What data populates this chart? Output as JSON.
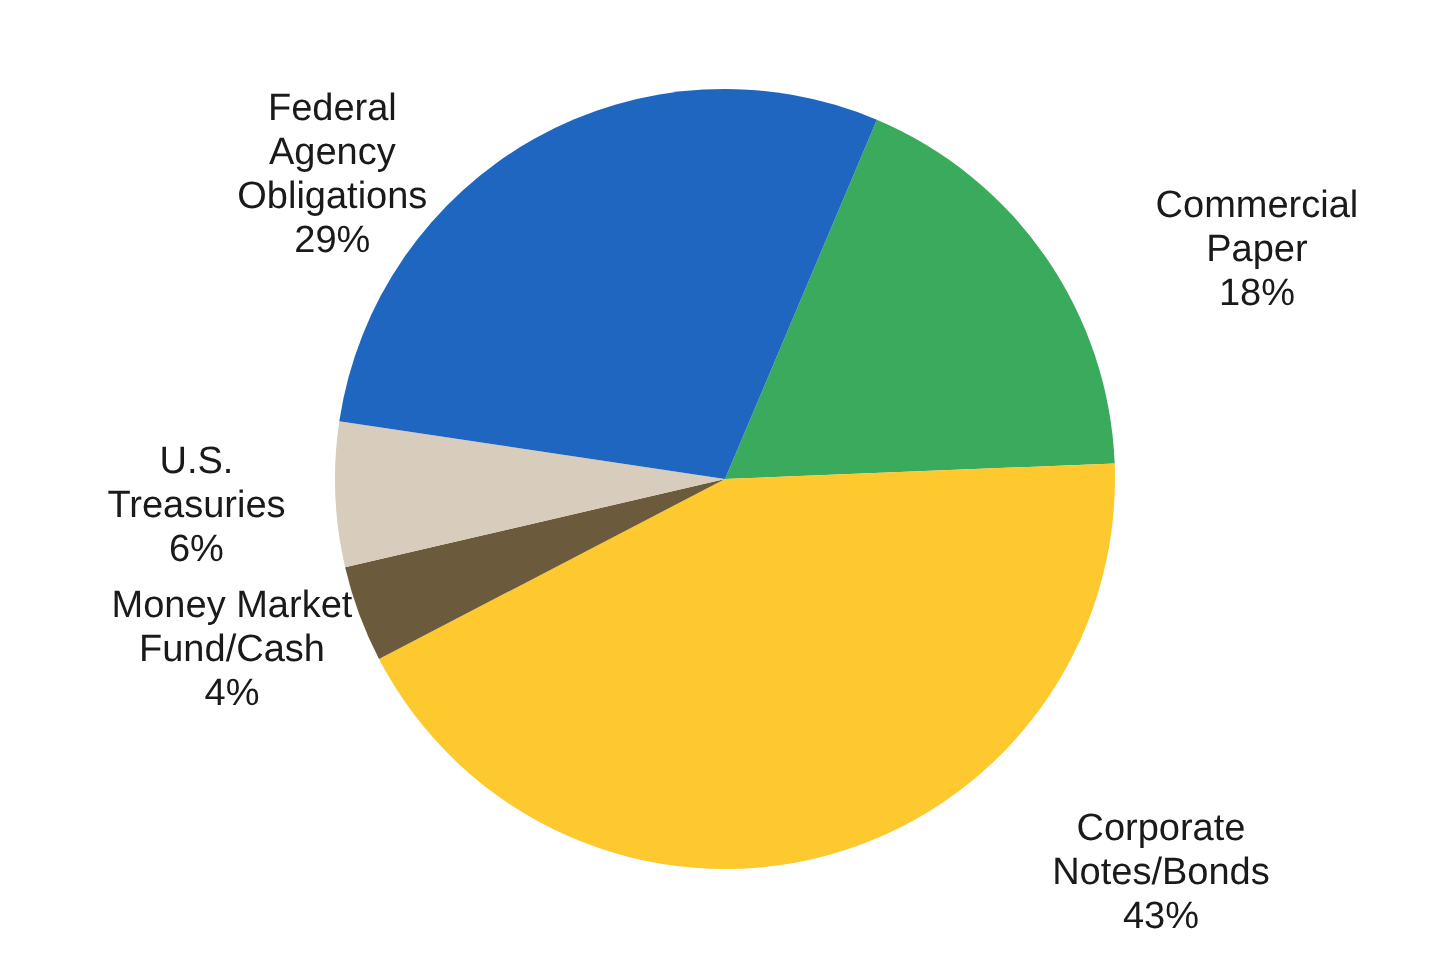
{
  "chart_data": {
    "type": "pie",
    "categories": [
      "Commercial Paper",
      "Corporate Notes/Bonds",
      "Money Market Fund/Cash",
      "U.S. Treasuries",
      "Federal Agency Obligations"
    ],
    "values": [
      18,
      43,
      4,
      6,
      29
    ],
    "value_labels": [
      "18%",
      "43%",
      "4%",
      "6%",
      "29%"
    ],
    "colors": [
      "#3aaa5c",
      "#fdc92f",
      "#6b5a3c",
      "#d8ccbc",
      "#1f66c0"
    ]
  }
}
